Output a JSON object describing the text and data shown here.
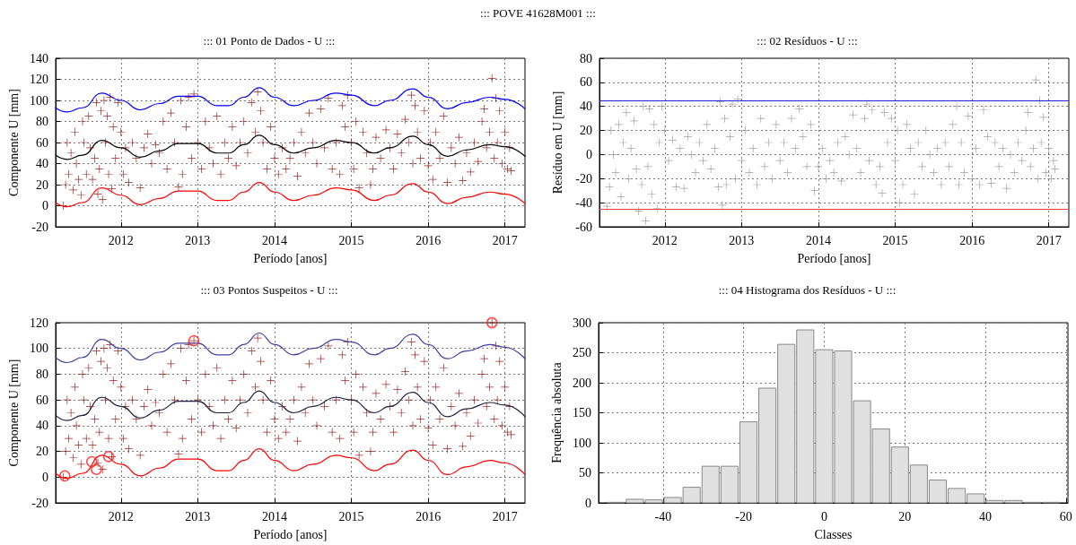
{
  "chart_data": [
    {
      "type": "scatter",
      "title": "::: 01 Ponto de Dados - U :::",
      "xlabel": "Período [anos]",
      "ylabel": "Componente U [mm]",
      "annotations": [
        "::: POVE 41628M001 :::"
      ],
      "xlim": [
        2011.15,
        2017.26
      ],
      "xticks": [
        2012,
        2013,
        2014,
        2015,
        2016,
        2017
      ],
      "ylim": [
        -20,
        140
      ],
      "yticks": [
        -20,
        0,
        20,
        40,
        60,
        80,
        100,
        120,
        140
      ],
      "grid": true,
      "series": [
        {
          "type": "scatter",
          "marker": "cross",
          "color": "#8b0000",
          "x": [
            2011.25,
            2011.28,
            2011.3,
            2011.32,
            2011.35,
            2011.38,
            2011.4,
            2011.42,
            2011.45,
            2011.48,
            2011.5,
            2011.52,
            2011.55,
            2011.58,
            2011.6,
            2011.63,
            2011.66,
            2011.68,
            2011.7,
            2011.72,
            2011.74,
            2011.76,
            2011.78,
            2011.8,
            2011.82,
            2011.84,
            2011.86,
            2011.88,
            2011.9,
            2011.93,
            2011.96,
            2012.0,
            2012.03,
            2012.06,
            2012.1,
            2012.15,
            2012.2,
            2012.25,
            2012.3,
            2012.35,
            2012.4,
            2012.45,
            2012.5,
            2012.55,
            2012.6,
            2012.65,
            2012.7,
            2012.75,
            2012.78,
            2012.8,
            2012.85,
            2012.88,
            2012.92,
            2012.95,
            2013.0,
            2013.05,
            2013.1,
            2013.15,
            2013.2,
            2013.25,
            2013.3,
            2013.35,
            2013.4,
            2013.45,
            2013.5,
            2013.55,
            2013.6,
            2013.65,
            2013.7,
            2013.75,
            2013.78,
            2013.82,
            2013.85,
            2013.9,
            2013.95,
            2014.0,
            2014.05,
            2014.1,
            2014.15,
            2014.2,
            2014.25,
            2014.3,
            2014.35,
            2014.4,
            2014.45,
            2014.5,
            2014.55,
            2014.6,
            2014.65,
            2014.7,
            2014.75,
            2014.8,
            2014.85,
            2014.88,
            2014.92,
            2014.95,
            2015.0,
            2015.03,
            2015.06,
            2015.1,
            2015.15,
            2015.2,
            2015.25,
            2015.28,
            2015.32,
            2015.38,
            2015.45,
            2015.5,
            2015.55,
            2015.6,
            2015.65,
            2015.7,
            2015.75,
            2015.78,
            2015.8,
            2015.83,
            2015.86,
            2015.9,
            2015.95,
            2016.0,
            2016.03,
            2016.06,
            2016.1,
            2016.15,
            2016.2,
            2016.25,
            2016.3,
            2016.35,
            2016.4,
            2016.45,
            2016.5,
            2016.55,
            2016.6,
            2016.65,
            2016.7,
            2016.73,
            2016.76,
            2016.8,
            2016.83,
            2016.86,
            2016.88,
            2016.9,
            2016.93,
            2016.96,
            2017.0,
            2017.03,
            2017.06,
            2017.08
          ],
          "values": [
            0,
            20,
            60,
            30,
            50,
            15,
            70,
            40,
            25,
            10,
            80,
            60,
            30,
            85,
            55,
            25,
            45,
            98,
            11,
            35,
            90,
            6,
            100,
            60,
            85,
            30,
            103,
            16,
            75,
            45,
            98,
            70,
            30,
            55,
            22,
            60,
            45,
            17,
            55,
            68,
            40,
            58,
            50,
            80,
            35,
            88,
            60,
            18,
            100,
            30,
            75,
            103,
            45,
            106,
            60,
            35,
            80,
            55,
            40,
            85,
            30,
            60,
            45,
            75,
            38,
            60,
            80,
            50,
            98,
            70,
            108,
            90,
            60,
            35,
            75,
            45,
            30,
            55,
            35,
            45,
            60,
            28,
            70,
            50,
            88,
            60,
            40,
            92,
            55,
            102,
            35,
            60,
            30,
            95,
            75,
            105,
            60,
            35,
            80,
            17,
            70,
            50,
            20,
            35,
            65,
            45,
            72,
            55,
            35,
            68,
            50,
            82,
            60,
            105,
            40,
            95,
            70,
            45,
            90,
            38,
            60,
            25,
            70,
            45,
            85,
            22,
            55,
            40,
            65,
            24,
            50,
            32,
            60,
            42,
            80,
            92,
            55,
            70,
            121,
            45,
            102,
            60,
            90,
            40,
            70,
            35,
            55,
            33
          ]
        },
        {
          "type": "line",
          "marker": "none",
          "color": "#0000ff",
          "x": [
            2011.15,
            2011.3,
            2011.5,
            2011.75,
            2012.0,
            2012.25,
            2012.5,
            2012.75,
            2013.0,
            2013.25,
            2013.4,
            2013.6,
            2013.8,
            2014.0,
            2014.25,
            2014.5,
            2014.8,
            2015.0,
            2015.3,
            2015.5,
            2015.8,
            2016.0,
            2016.25,
            2016.5,
            2016.8,
            2017.0,
            2017.26
          ],
          "values": [
            93,
            89,
            93,
            107,
            100,
            91,
            97,
            104,
            104,
            95,
            95,
            103,
            112,
            103,
            95,
            100,
            107,
            105,
            95,
            100,
            111,
            103,
            92,
            98,
            103,
            101,
            92
          ]
        },
        {
          "type": "line",
          "marker": "none",
          "color": "#ff0000",
          "x": [
            2011.15,
            2011.3,
            2011.5,
            2011.75,
            2012.0,
            2012.25,
            2012.5,
            2012.75,
            2013.0,
            2013.25,
            2013.4,
            2013.6,
            2013.8,
            2014.0,
            2014.25,
            2014.5,
            2014.8,
            2015.0,
            2015.3,
            2015.5,
            2015.8,
            2016.0,
            2016.25,
            2016.5,
            2016.8,
            2017.0,
            2017.26
          ],
          "values": [
            3,
            -1,
            3,
            17,
            10,
            1,
            7,
            14,
            14,
            5,
            5,
            13,
            22,
            13,
            5,
            10,
            17,
            15,
            5,
            10,
            21,
            13,
            2,
            8,
            13,
            11,
            2
          ]
        },
        {
          "type": "line",
          "marker": "none",
          "color": "#000000",
          "x": [
            2011.15,
            2011.3,
            2011.5,
            2011.75,
            2012.0,
            2012.25,
            2012.5,
            2012.75,
            2013.0,
            2013.25,
            2013.4,
            2013.6,
            2013.8,
            2014.0,
            2014.25,
            2014.5,
            2014.8,
            2015.0,
            2015.3,
            2015.5,
            2015.8,
            2016.0,
            2016.25,
            2016.5,
            2016.8,
            2017.0,
            2017.26
          ],
          "values": [
            48,
            44,
            48,
            62,
            55,
            46,
            52,
            59,
            59,
            50,
            50,
            58,
            67,
            58,
            50,
            55,
            62,
            60,
            50,
            55,
            66,
            58,
            47,
            53,
            58,
            56,
            47
          ]
        }
      ]
    },
    {
      "type": "scatter",
      "title": "::: 02 Resíduos - U :::",
      "xlabel": "Período [anos]",
      "ylabel": "Resíduo em U [mm]",
      "xlim": [
        2011.15,
        2017.26
      ],
      "xticks": [
        2012,
        2013,
        2014,
        2015,
        2016,
        2017
      ],
      "ylim": [
        -60,
        80
      ],
      "yticks": [
        -60,
        -40,
        -20,
        0,
        20,
        40,
        60,
        80
      ],
      "grid": true,
      "ref_lines": [
        {
          "axis": "y",
          "value": 45,
          "color": "#2020e0"
        },
        {
          "axis": "y",
          "value": -45,
          "color": "#ff4040"
        }
      ],
      "series": [
        {
          "type": "scatter",
          "marker": "cross",
          "color": "#909090",
          "x": [
            2011.25,
            2011.28,
            2011.3,
            2011.33,
            2011.36,
            2011.4,
            2011.43,
            2011.46,
            2011.5,
            2011.53,
            2011.56,
            2011.6,
            2011.63,
            2011.66,
            2011.7,
            2011.72,
            2011.75,
            2011.78,
            2011.8,
            2011.83,
            2011.86,
            2011.9,
            2011.93,
            2011.96,
            2012.0,
            2012.05,
            2012.1,
            2012.15,
            2012.2,
            2012.25,
            2012.3,
            2012.35,
            2012.4,
            2012.45,
            2012.5,
            2012.55,
            2012.6,
            2012.65,
            2012.7,
            2012.72,
            2012.75,
            2012.78,
            2012.8,
            2012.85,
            2012.88,
            2012.92,
            2012.95,
            2013.0,
            2013.05,
            2013.1,
            2013.15,
            2013.2,
            2013.25,
            2013.3,
            2013.35,
            2013.4,
            2013.45,
            2013.5,
            2013.55,
            2013.6,
            2013.65,
            2013.7,
            2013.75,
            2013.8,
            2013.85,
            2013.9,
            2013.95,
            2014.0,
            2014.05,
            2014.1,
            2014.15,
            2014.2,
            2014.25,
            2014.3,
            2014.35,
            2014.4,
            2014.45,
            2014.5,
            2014.55,
            2014.6,
            2014.63,
            2014.66,
            2014.7,
            2014.75,
            2014.8,
            2014.83,
            2014.86,
            2014.9,
            2014.95,
            2015.0,
            2015.03,
            2015.06,
            2015.1,
            2015.15,
            2015.2,
            2015.25,
            2015.3,
            2015.35,
            2015.4,
            2015.45,
            2015.5,
            2015.55,
            2015.6,
            2015.65,
            2015.7,
            2015.75,
            2015.8,
            2015.83,
            2015.86,
            2015.9,
            2015.95,
            2016.0,
            2016.05,
            2016.1,
            2016.15,
            2016.2,
            2016.25,
            2016.3,
            2016.35,
            2016.4,
            2016.45,
            2016.5,
            2016.55,
            2016.6,
            2016.65,
            2016.7,
            2016.73,
            2016.76,
            2016.8,
            2016.83,
            2016.86,
            2016.88,
            2016.9,
            2016.93,
            2016.96,
            2017.0,
            2017.03,
            2017.06,
            2017.08
          ],
          "values": [
            -43,
            -27,
            20,
            0,
            -15,
            25,
            -35,
            10,
            35,
            -20,
            5,
            28,
            -12,
            -47,
            -25,
            40,
            -55,
            -10,
            38,
            -33,
            25,
            -45,
            10,
            40,
            20,
            -5,
            12,
            -27,
            5,
            -28,
            15,
            0,
            -15,
            10,
            -5,
            25,
            -12,
            5,
            -27,
            44,
            -42,
            30,
            -25,
            15,
            42,
            -20,
            46,
            -5,
            20,
            -15,
            5,
            -25,
            30,
            -10,
            10,
            -20,
            25,
            -5,
            10,
            -15,
            30,
            5,
            38,
            15,
            -10,
            25,
            -30,
            -10,
            5,
            -20,
            -5,
            -15,
            10,
            -22,
            15,
            0,
            33,
            5,
            -15,
            30,
            42,
            -5,
            37,
            -25,
            -10,
            -32,
            35,
            10,
            30,
            -5,
            20,
            -40,
            -25,
            25,
            5,
            -33,
            10,
            -10,
            20,
            0,
            -15,
            5,
            -25,
            10,
            -10,
            25,
            40,
            -25,
            10,
            -15,
            32,
            -20,
            5,
            -25,
            37,
            15,
            -24,
            10,
            -10,
            5,
            -28,
            0,
            -15,
            10,
            -5,
            20,
            35,
            -10,
            5,
            62,
            -20,
            45,
            10,
            31,
            -15,
            5,
            -20,
            -5,
            -12
          ]
        }
      ]
    },
    {
      "type": "scatter",
      "title": "::: 03 Pontos Suspeitos - U :::",
      "xlabel": "Período [anos]",
      "ylabel": "Componente U [mm]",
      "xlim": [
        2011.15,
        2017.26
      ],
      "xticks": [
        2012,
        2013,
        2014,
        2015,
        2016,
        2017
      ],
      "ylim": [
        -20,
        120
      ],
      "yticks": [
        -20,
        0,
        20,
        40,
        60,
        80,
        100,
        120
      ],
      "grid": true,
      "series": [
        {
          "type": "scatter",
          "marker": "cross",
          "color": "#8b0000",
          "x": [
            2011.25,
            2011.28,
            2011.3,
            2011.32,
            2011.35,
            2011.38,
            2011.4,
            2011.42,
            2011.45,
            2011.48,
            2011.5,
            2011.52,
            2011.55,
            2011.58,
            2011.6,
            2011.63,
            2011.66,
            2011.68,
            2011.7,
            2011.72,
            2011.74,
            2011.76,
            2011.78,
            2011.8,
            2011.82,
            2011.84,
            2011.86,
            2011.88,
            2011.9,
            2011.93,
            2011.96,
            2012.0,
            2012.03,
            2012.06,
            2012.1,
            2012.15,
            2012.2,
            2012.25,
            2012.3,
            2012.35,
            2012.4,
            2012.45,
            2012.5,
            2012.55,
            2012.6,
            2012.65,
            2012.7,
            2012.75,
            2012.78,
            2012.8,
            2012.85,
            2012.88,
            2012.92,
            2012.95,
            2013.0,
            2013.05,
            2013.1,
            2013.15,
            2013.2,
            2013.25,
            2013.3,
            2013.35,
            2013.4,
            2013.45,
            2013.5,
            2013.55,
            2013.6,
            2013.65,
            2013.7,
            2013.75,
            2013.78,
            2013.82,
            2013.85,
            2013.9,
            2013.95,
            2014.0,
            2014.05,
            2014.1,
            2014.15,
            2014.2,
            2014.25,
            2014.3,
            2014.35,
            2014.4,
            2014.45,
            2014.5,
            2014.55,
            2014.6,
            2014.65,
            2014.7,
            2014.75,
            2014.8,
            2014.85,
            2014.88,
            2014.92,
            2014.95,
            2015.0,
            2015.03,
            2015.06,
            2015.1,
            2015.15,
            2015.2,
            2015.25,
            2015.28,
            2015.32,
            2015.38,
            2015.45,
            2015.5,
            2015.55,
            2015.6,
            2015.65,
            2015.7,
            2015.75,
            2015.78,
            2015.8,
            2015.83,
            2015.86,
            2015.9,
            2015.95,
            2016.0,
            2016.03,
            2016.06,
            2016.1,
            2016.15,
            2016.2,
            2016.25,
            2016.3,
            2016.35,
            2016.4,
            2016.45,
            2016.5,
            2016.55,
            2016.6,
            2016.65,
            2016.7,
            2016.73,
            2016.76,
            2016.8,
            2016.83,
            2016.86,
            2016.88,
            2016.9,
            2016.93,
            2016.96,
            2017.0,
            2017.03,
            2017.06,
            2017.08
          ],
          "values": [
            0,
            20,
            60,
            30,
            50,
            15,
            70,
            40,
            25,
            10,
            80,
            60,
            30,
            85,
            55,
            25,
            45,
            98,
            11,
            35,
            90,
            6,
            100,
            60,
            85,
            30,
            103,
            16,
            75,
            45,
            98,
            70,
            30,
            55,
            22,
            60,
            45,
            17,
            55,
            68,
            40,
            58,
            50,
            80,
            35,
            88,
            60,
            18,
            100,
            30,
            75,
            103,
            45,
            106,
            60,
            35,
            80,
            55,
            40,
            85,
            30,
            60,
            45,
            75,
            38,
            60,
            80,
            50,
            98,
            70,
            108,
            90,
            60,
            35,
            75,
            45,
            30,
            55,
            35,
            45,
            60,
            28,
            70,
            50,
            88,
            60,
            40,
            92,
            55,
            102,
            35,
            60,
            30,
            95,
            75,
            105,
            60,
            35,
            80,
            17,
            70,
            50,
            20,
            35,
            65,
            45,
            72,
            55,
            35,
            68,
            50,
            82,
            60,
            105,
            40,
            95,
            70,
            45,
            90,
            38,
            60,
            25,
            70,
            45,
            85,
            22,
            55,
            40,
            65,
            24,
            50,
            32,
            60,
            42,
            80,
            92,
            55,
            70,
            120,
            45,
            102,
            60,
            90,
            40,
            70,
            35,
            55,
            33
          ]
        },
        {
          "type": "line",
          "marker": "none",
          "color": "#4040a0",
          "x": [
            2011.15,
            2011.3,
            2011.5,
            2011.75,
            2012.0,
            2012.25,
            2012.5,
            2012.75,
            2013.0,
            2013.25,
            2013.4,
            2013.6,
            2013.8,
            2014.0,
            2014.25,
            2014.5,
            2014.8,
            2015.0,
            2015.3,
            2015.5,
            2015.8,
            2016.0,
            2016.25,
            2016.5,
            2016.8,
            2017.0,
            2017.26
          ],
          "values": [
            93,
            89,
            93,
            107,
            100,
            91,
            97,
            104,
            104,
            95,
            95,
            103,
            112,
            103,
            95,
            100,
            107,
            105,
            95,
            100,
            111,
            103,
            92,
            98,
            103,
            101,
            92
          ]
        },
        {
          "type": "line",
          "marker": "none",
          "color": "#ff0000",
          "x": [
            2011.15,
            2011.3,
            2011.5,
            2011.75,
            2012.0,
            2012.25,
            2012.5,
            2012.75,
            2013.0,
            2013.25,
            2013.4,
            2013.6,
            2013.8,
            2014.0,
            2014.25,
            2014.5,
            2014.8,
            2015.0,
            2015.3,
            2015.5,
            2015.8,
            2016.0,
            2016.25,
            2016.5,
            2016.8,
            2017.0,
            2017.26
          ],
          "values": [
            3,
            -1,
            3,
            17,
            10,
            1,
            7,
            14,
            14,
            5,
            5,
            13,
            22,
            13,
            5,
            10,
            17,
            15,
            5,
            10,
            21,
            13,
            2,
            8,
            13,
            11,
            2
          ]
        },
        {
          "type": "line",
          "marker": "none",
          "color": "#202040",
          "x": [
            2011.15,
            2011.3,
            2011.5,
            2011.75,
            2012.0,
            2012.25,
            2012.5,
            2012.75,
            2013.0,
            2013.25,
            2013.4,
            2013.6,
            2013.8,
            2014.0,
            2014.25,
            2014.5,
            2014.8,
            2015.0,
            2015.3,
            2015.5,
            2015.8,
            2016.0,
            2016.25,
            2016.5,
            2016.8,
            2017.0,
            2017.26
          ],
          "values": [
            48,
            44,
            48,
            62,
            55,
            46,
            52,
            59,
            59,
            50,
            50,
            58,
            67,
            58,
            50,
            55,
            62,
            60,
            50,
            55,
            66,
            58,
            47,
            53,
            58,
            56,
            47
          ]
        },
        {
          "type": "scatter",
          "marker": "circle",
          "color": "#ff2020",
          "x": [
            2011.27,
            2011.62,
            2011.68,
            2011.84,
            2012.95,
            2016.83
          ],
          "values": [
            1,
            12,
            6,
            16,
            106,
            120
          ]
        }
      ]
    },
    {
      "type": "histogram",
      "title": "::: 04 Histograma dos Resíduos - U :::",
      "xlabel": "Classes",
      "ylabel": "Frequência absoluta",
      "color": "#e0e0e0",
      "xlim": [
        -56,
        60.5
      ],
      "xticks": [
        -40,
        -20,
        0,
        20,
        40,
        60
      ],
      "ylim": [
        0,
        300
      ],
      "yticks": [
        0,
        50,
        100,
        150,
        200,
        250,
        300
      ],
      "grid": true,
      "bins": [
        -54.05,
        -49.35,
        -44.65,
        -39.95,
        -35.25,
        -30.55,
        -25.85,
        -21.15,
        -16.45,
        -11.75,
        -7.05,
        -2.35,
        2.35,
        7.05,
        11.75,
        16.45,
        21.15,
        25.85,
        30.55,
        35.25,
        39.95,
        44.65,
        49.35,
        54.05,
        58.75
      ],
      "values": [
        1,
        6,
        5,
        9,
        26,
        61,
        61,
        135,
        191,
        264,
        288,
        255,
        253,
        170,
        123,
        93,
        63,
        38,
        24,
        15,
        4,
        4,
        1,
        1
      ]
    }
  ]
}
